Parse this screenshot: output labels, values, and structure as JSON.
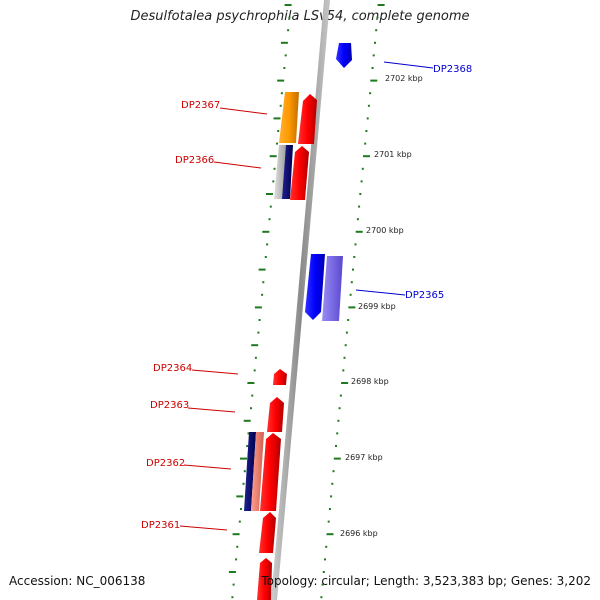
{
  "title": "Desulfotalea psychrophila LSv54, complete genome",
  "accession_label": "Accession: NC_006138",
  "topology_label": "Topology: circular; Length: 3,523,383 bp; Genes: 3,202",
  "colors": {
    "backbone": "#8f8f8f",
    "dots": "#1f7a1f",
    "forward_label": "#0000cc",
    "reverse_label": "#cc0000",
    "gene_red": "#ff0000",
    "gene_blue": "#0000ff",
    "gene_orange": "#ff9900",
    "gene_navy": "#0a0a7a",
    "gene_gray": "#bbbbbb",
    "gene_salmon": "#f08070",
    "gene_lavender": "#7b68ee"
  },
  "scale": {
    "unit": "kbp",
    "ticks": [
      "2702 kbp",
      "2701 kbp",
      "2700 kbp",
      "2699 kbp",
      "2698 kbp",
      "2697 kbp",
      "2696 kbp"
    ]
  },
  "genes": [
    {
      "label": "DP2368",
      "side": "right",
      "color": "gene_blue"
    },
    {
      "label": "DP2367",
      "side": "left",
      "color": "gene_red"
    },
    {
      "label": "DP2366",
      "side": "left",
      "color": "gene_red"
    },
    {
      "label": "DP2365",
      "side": "right",
      "color": "gene_blue"
    },
    {
      "label": "DP2364",
      "side": "left",
      "color": "gene_red"
    },
    {
      "label": "DP2363",
      "side": "left",
      "color": "gene_red"
    },
    {
      "label": "DP2362",
      "side": "left",
      "color": "gene_red"
    },
    {
      "label": "DP2361",
      "side": "left",
      "color": "gene_red"
    }
  ]
}
